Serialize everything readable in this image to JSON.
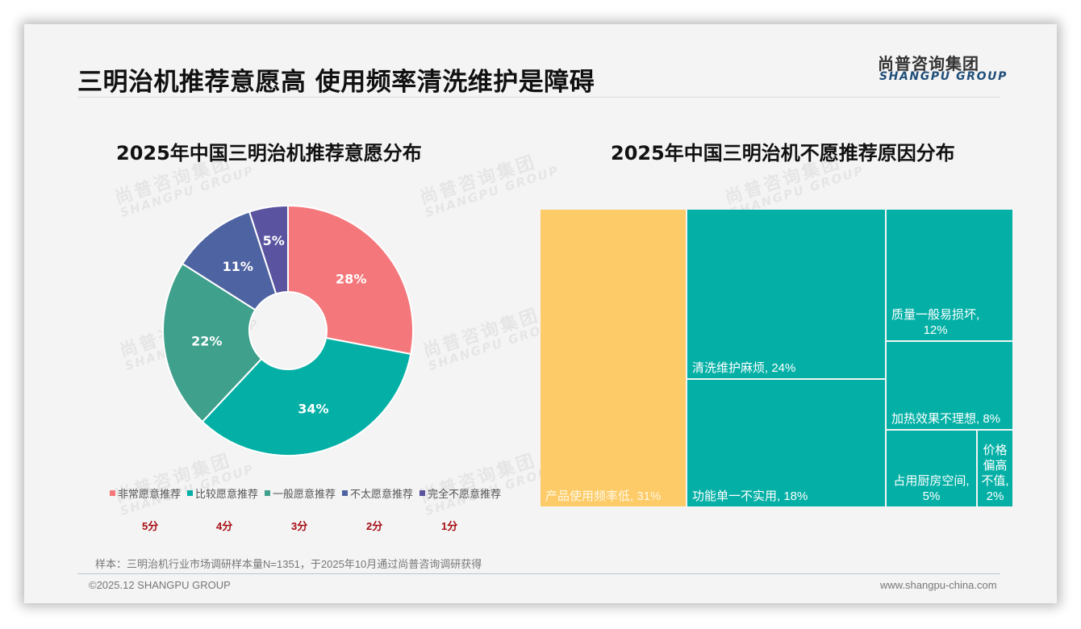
{
  "header": {
    "title": "三明治机推荐意愿高 使用频率清洗维护是障碍",
    "logo_cn": "尚普咨询集团",
    "logo_en": "SHANGPU GROUP"
  },
  "watermark": {
    "cn": "尚普咨询集团",
    "en": "SHANGPU GROUP"
  },
  "left_chart": {
    "title": "2025年中国三明治机推荐意愿分布",
    "legend": [
      {
        "label": "非常愿意推荐",
        "color": "#f4787b",
        "score": "5分"
      },
      {
        "label": "比较愿意推荐",
        "color": "#04b0a6",
        "score": "4分"
      },
      {
        "label": "一般愿意推荐",
        "color": "#3fa08c",
        "score": "3分"
      },
      {
        "label": "不太愿意推荐",
        "color": "#4e63a1",
        "score": "2分"
      },
      {
        "label": "完全不愿意推荐",
        "color": "#5a54a0",
        "score": "1分"
      }
    ],
    "labels": [
      "28%",
      "34%",
      "22%",
      "11%",
      "5%"
    ]
  },
  "right_chart": {
    "title": "2025年中国三明治机不愿推荐原因分布",
    "cells": [
      {
        "label": "产品使用频率低, 31%",
        "color": "#fdcb67"
      },
      {
        "label": "清洗维护麻烦, 24%",
        "color": "#04b0a6"
      },
      {
        "label": "功能单一不实用, 18%",
        "color": "#04b0a6"
      },
      {
        "label": "质量一般易损坏,\n12%",
        "color": "#04b0a6"
      },
      {
        "label": "加热效果不理想, 8%",
        "color": "#04b0a6"
      },
      {
        "label": "占用厨房空间,\n5%",
        "color": "#04b0a6"
      },
      {
        "label": "价格\n偏高\n不值,\n2%",
        "color": "#04b0a6"
      }
    ]
  },
  "chart_data": [
    {
      "type": "pie",
      "title": "2025年中国三明治机推荐意愿分布",
      "categories": [
        "非常愿意推荐",
        "比较愿意推荐",
        "一般愿意推荐",
        "不太愿意推荐",
        "完全不愿意推荐"
      ],
      "scores": [
        "5分",
        "4分",
        "3分",
        "2分",
        "1分"
      ],
      "values": [
        28,
        34,
        22,
        11,
        5
      ],
      "unit": "%",
      "donut": true,
      "colors": [
        "#f4787b",
        "#04b0a6",
        "#3fa08c",
        "#4e63a1",
        "#5a54a0"
      ],
      "legend_position": "bottom"
    },
    {
      "type": "treemap",
      "title": "2025年中国三明治机不愿推荐原因分布",
      "categories": [
        "产品使用频率低",
        "清洗维护麻烦",
        "功能单一不实用",
        "质量一般易损坏",
        "加热效果不理想",
        "占用厨房空间",
        "价格偏高不值"
      ],
      "values": [
        31,
        24,
        18,
        12,
        8,
        5,
        2
      ],
      "unit": "%",
      "colors": [
        "#fdcb67",
        "#04b0a6",
        "#04b0a6",
        "#04b0a6",
        "#04b0a6",
        "#04b0a6",
        "#04b0a6"
      ]
    }
  ],
  "footer": {
    "note": "样本：三明治机行业市场调研样本量N=1351，于2025年10月通过尚普咨询调研获得",
    "copyright": "©2025.12 SHANGPU GROUP",
    "website": "www.shangpu-china.com"
  }
}
